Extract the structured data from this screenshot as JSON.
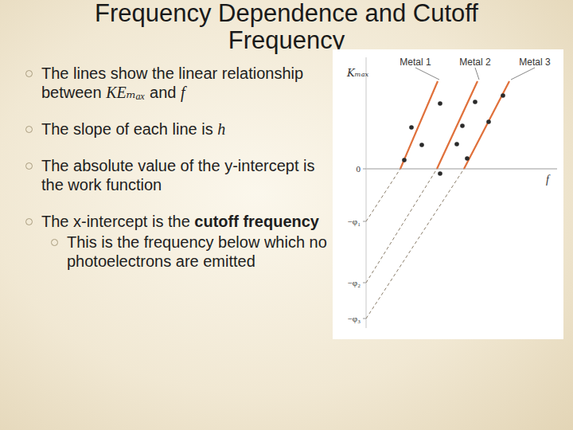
{
  "title": "Frequency Dependence and Cutoff Frequency",
  "bullets": [
    {
      "segments": [
        {
          "text": "The lines show the linear relationship between "
        },
        {
          "text": "KEₘₐₓ",
          "style": "italic"
        },
        {
          "text": " and "
        },
        {
          "text": "f",
          "style": "italic"
        }
      ]
    },
    {
      "segments": [
        {
          "text": "The slope of each line is "
        },
        {
          "text": "h",
          "style": "italic"
        }
      ]
    },
    {
      "segments": [
        {
          "text": "The absolute value of the y-intercept is the work function"
        }
      ]
    },
    {
      "segments": [
        {
          "text": "The x-intercept is the "
        },
        {
          "text": "cutoff frequency",
          "style": "bold"
        }
      ],
      "children": [
        {
          "segments": [
            {
              "text": "This is the frequency below which no photoelectrons are emitted"
            }
          ]
        }
      ]
    }
  ],
  "chart_data": {
    "type": "scatter",
    "x_label": "f",
    "y_label": "Kₘₐₓ",
    "xlim": [
      0,
      24
    ],
    "ylim": [
      -20,
      14
    ],
    "yticks": [
      0,
      {
        "value": -6.6,
        "label": "−φ₁"
      },
      {
        "value": -14.3,
        "label": "−φ₂"
      },
      {
        "value": -18.8,
        "label": "−φ₃"
      }
    ],
    "tick_labels": "y",
    "marker": "circle",
    "series": [
      {
        "name": "Metal 1",
        "color": "#e0703a",
        "x": [
          4.8,
          5.7,
          7.0,
          9.3
        ],
        "values": [
          1.1,
          5.2,
          3.0,
          8.2
        ],
        "line_x": [
          0,
          4.3,
          9.0
        ],
        "line_values": [
          -6.6,
          0,
          11.0
        ]
      },
      {
        "name": "Metal 2",
        "color": "#e0703a",
        "x": [
          9.3,
          11.4,
          12.1,
          13.7
        ],
        "values": [
          -0.6,
          3.1,
          5.4,
          8.4
        ],
        "line_x": [
          0,
          8.9,
          14.0
        ],
        "line_values": [
          -14.3,
          0,
          11.0
        ]
      },
      {
        "name": "Metal 3",
        "color": "#e0703a",
        "x": [
          12.7,
          15.4,
          17.2
        ],
        "values": [
          1.3,
          5.9,
          9.2
        ],
        "line_x": [
          0,
          12.3,
          18.0
        ],
        "line_values": [
          -18.8,
          0,
          11.0
        ]
      }
    ]
  }
}
